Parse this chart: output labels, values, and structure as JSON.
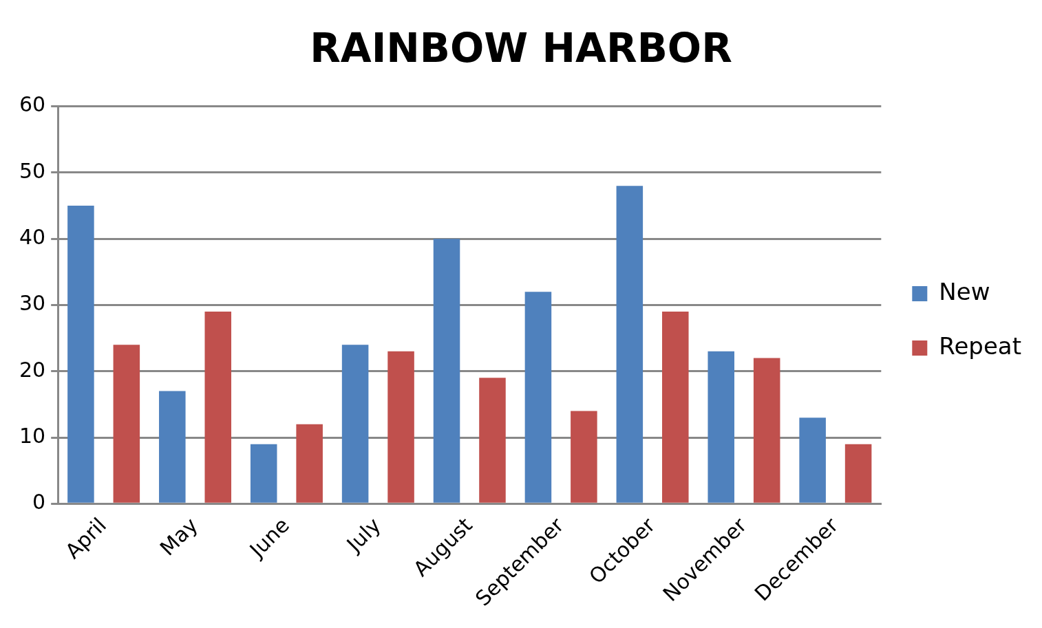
{
  "chart_data": {
    "type": "bar",
    "title": "RAINBOW HARBOR",
    "categories": [
      "April",
      "May",
      "June",
      "July",
      "August",
      "September",
      "October",
      "November",
      "December"
    ],
    "series": [
      {
        "name": "New",
        "color": "#4f81bd",
        "values": [
          45,
          17,
          9,
          24,
          40,
          32,
          48,
          23,
          13
        ]
      },
      {
        "name": "Repeat",
        "color": "#c0504d",
        "values": [
          24,
          29,
          12,
          23,
          19,
          14,
          29,
          22,
          9
        ]
      }
    ],
    "ylim": [
      0,
      60
    ],
    "yticks": [
      0,
      10,
      20,
      30,
      40,
      50,
      60
    ],
    "grid": "y",
    "legend": "right"
  }
}
